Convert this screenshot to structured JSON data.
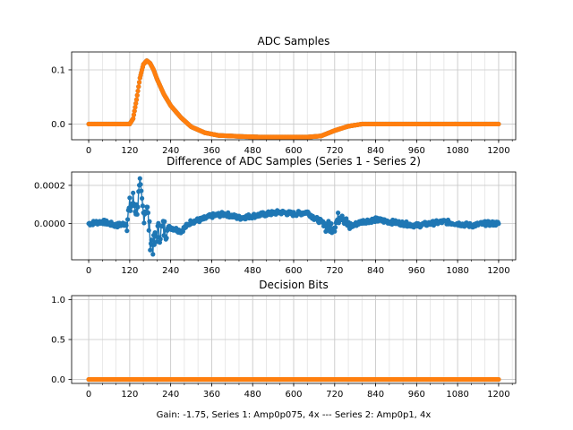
{
  "chart_data": [
    {
      "type": "scatter",
      "title": "ADC Samples",
      "xlim": [
        -50,
        1250
      ],
      "ylim": [
        -0.029,
        0.133
      ],
      "xticks": [
        0,
        120,
        240,
        360,
        480,
        600,
        720,
        840,
        960,
        1080,
        1200
      ],
      "xtick_labels": [
        "0",
        "120",
        "240",
        "360",
        "480",
        "600",
        "720",
        "840",
        "960",
        "1080",
        "1200"
      ],
      "yticks": [
        0.0,
        0.1
      ],
      "ytick_labels": [
        "0.0",
        "0.1"
      ],
      "grid": true,
      "x_minor_step": 40,
      "series": [
        {
          "name": "Series 1",
          "color": "#1f77b4",
          "x": [
            0,
            100,
            120,
            130,
            140,
            150,
            160,
            170,
            180,
            190,
            200,
            220,
            240,
            270,
            300,
            340,
            380,
            450,
            500,
            600,
            640,
            680,
            720,
            760,
            800,
            820,
            900,
            1000,
            1100,
            1200
          ],
          "y": [
            0,
            0,
            0,
            0.01,
            0.045,
            0.085,
            0.11,
            0.117,
            0.112,
            0.1,
            0.083,
            0.055,
            0.034,
            0.012,
            -0.005,
            -0.016,
            -0.021,
            -0.023,
            -0.024,
            -0.024,
            -0.024,
            -0.022,
            -0.012,
            -0.004,
            0,
            0,
            0,
            0,
            0,
            0
          ]
        },
        {
          "name": "Series 2",
          "color": "#ff7f0e",
          "x": [
            0,
            100,
            120,
            130,
            140,
            150,
            160,
            170,
            180,
            190,
            200,
            220,
            240,
            270,
            300,
            340,
            380,
            450,
            500,
            600,
            640,
            680,
            720,
            760,
            800,
            820,
            900,
            1000,
            1100,
            1200
          ],
          "y": [
            0,
            0,
            0,
            0.01,
            0.045,
            0.085,
            0.11,
            0.117,
            0.112,
            0.1,
            0.083,
            0.055,
            0.034,
            0.012,
            -0.005,
            -0.016,
            -0.021,
            -0.023,
            -0.024,
            -0.024,
            -0.024,
            -0.022,
            -0.012,
            -0.004,
            0,
            0,
            0,
            0,
            0,
            0
          ]
        }
      ]
    },
    {
      "type": "scatter",
      "title": "Difference of ADC Samples (Series 1 - Series 2)",
      "xlim": [
        -50,
        1250
      ],
      "ylim": [
        -0.00019,
        0.00027
      ],
      "xticks": [
        0,
        120,
        240,
        360,
        480,
        600,
        720,
        840,
        960,
        1080,
        1200
      ],
      "xtick_labels": [
        "0",
        "120",
        "240",
        "360",
        "480",
        "600",
        "720",
        "840",
        "960",
        "1080",
        "1200"
      ],
      "yticks": [
        0.0,
        0.0002
      ],
      "ytick_labels": [
        "0.0000",
        "0.0002"
      ],
      "grid": true,
      "x_minor_step": 40,
      "series": [
        {
          "name": "Series 1 - Series 2",
          "color": "#1f77b4",
          "x": [
            0,
            40,
            80,
            110,
            120,
            130,
            140,
            150,
            160,
            170,
            180,
            190,
            200,
            220,
            240,
            270,
            300,
            330,
            360,
            400,
            440,
            480,
            520,
            560,
            600,
            640,
            660,
            680,
            700,
            720,
            740,
            760,
            800,
            840,
            880,
            920,
            960,
            1000,
            1040,
            1080,
            1120,
            1160,
            1200
          ],
          "y": [
            0.0,
            1e-05,
            -1e-05,
            0.0,
            8e-05,
            0.00012,
            7e-05,
            0.00018,
            5e-05,
            0.0001,
            -8e-05,
            -0.00012,
            -5e-05,
            -3e-05,
            -2e-05,
            -4e-05,
            1e-05,
            2e-05,
            4e-05,
            5e-05,
            3e-05,
            4e-05,
            5e-05,
            6e-05,
            5e-05,
            6e-05,
            3e-05,
            1e-05,
            -2e-05,
            -1e-05,
            6e-05,
            -2e-05,
            1e-05,
            2e-05,
            1e-05,
            0.0,
            -1e-05,
            0.0,
            1e-05,
            0.0,
            -1e-05,
            0.0,
            0.0
          ]
        }
      ]
    },
    {
      "type": "scatter",
      "title": "Decision Bits",
      "xlim": [
        -50,
        1250
      ],
      "ylim": [
        -0.05,
        1.05
      ],
      "xticks": [
        0,
        120,
        240,
        360,
        480,
        600,
        720,
        840,
        960,
        1080,
        1200
      ],
      "xtick_labels": [
        "0",
        "120",
        "240",
        "360",
        "480",
        "600",
        "720",
        "840",
        "960",
        "1080",
        "1200"
      ],
      "yticks": [
        0.0,
        0.5,
        1.0
      ],
      "ytick_labels": [
        "0.0",
        "0.5",
        "1.0"
      ],
      "grid": true,
      "x_minor_step": 40,
      "xlabel": "Gain: -1.75, Series 1: Amp0p075, 4x --- Series 2: Amp0p1, 4x",
      "series": [
        {
          "name": "Series 1",
          "color": "#1f77b4",
          "x": [
            0,
            1200
          ],
          "y": [
            0,
            0
          ]
        },
        {
          "name": "Series 2",
          "color": "#ff7f0e",
          "x": [
            0,
            1200
          ],
          "y": [
            0,
            0
          ]
        }
      ]
    }
  ]
}
